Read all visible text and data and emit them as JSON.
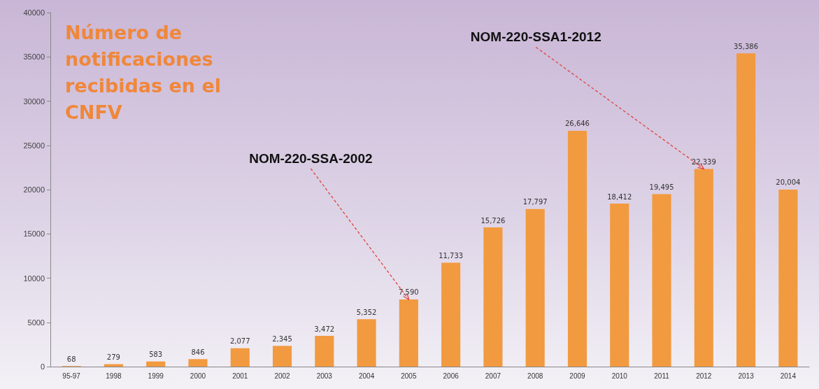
{
  "chart_data": {
    "type": "bar",
    "title": "Número de notificaciones recibidas en el CNFV",
    "categories": [
      "95-97",
      "1998",
      "1999",
      "2000",
      "2001",
      "2002",
      "2003",
      "2004",
      "2005",
      "2006",
      "2007",
      "2008",
      "2009",
      "2010",
      "2011",
      "2012",
      "2013",
      "2014"
    ],
    "values": [
      68,
      279,
      583,
      846,
      2077,
      2345,
      3472,
      5352,
      7590,
      11733,
      15726,
      17797,
      26646,
      18412,
      19495,
      22339,
      35386,
      20004
    ],
    "value_labels": [
      "68",
      "279",
      "583",
      "846",
      "2,077",
      "2,345",
      "3,472",
      "5,352",
      "7,590",
      "11,733",
      "15,726",
      "17,797",
      "26,646",
      "18,412",
      "19,495",
      "22,339",
      "35,386",
      "20,004"
    ],
    "color": "#f29a3f",
    "ylim": [
      0,
      40000
    ],
    "yticks": [
      0,
      5000,
      10000,
      15000,
      20000,
      25000,
      30000,
      35000,
      40000
    ],
    "grid": false,
    "annotations": [
      {
        "text": "NOM-220-SSA-2002",
        "x": "2005",
        "y": 7590
      },
      {
        "text": "NOM-220-SSA1-2012",
        "x": "2012",
        "y": 22339
      }
    ]
  }
}
